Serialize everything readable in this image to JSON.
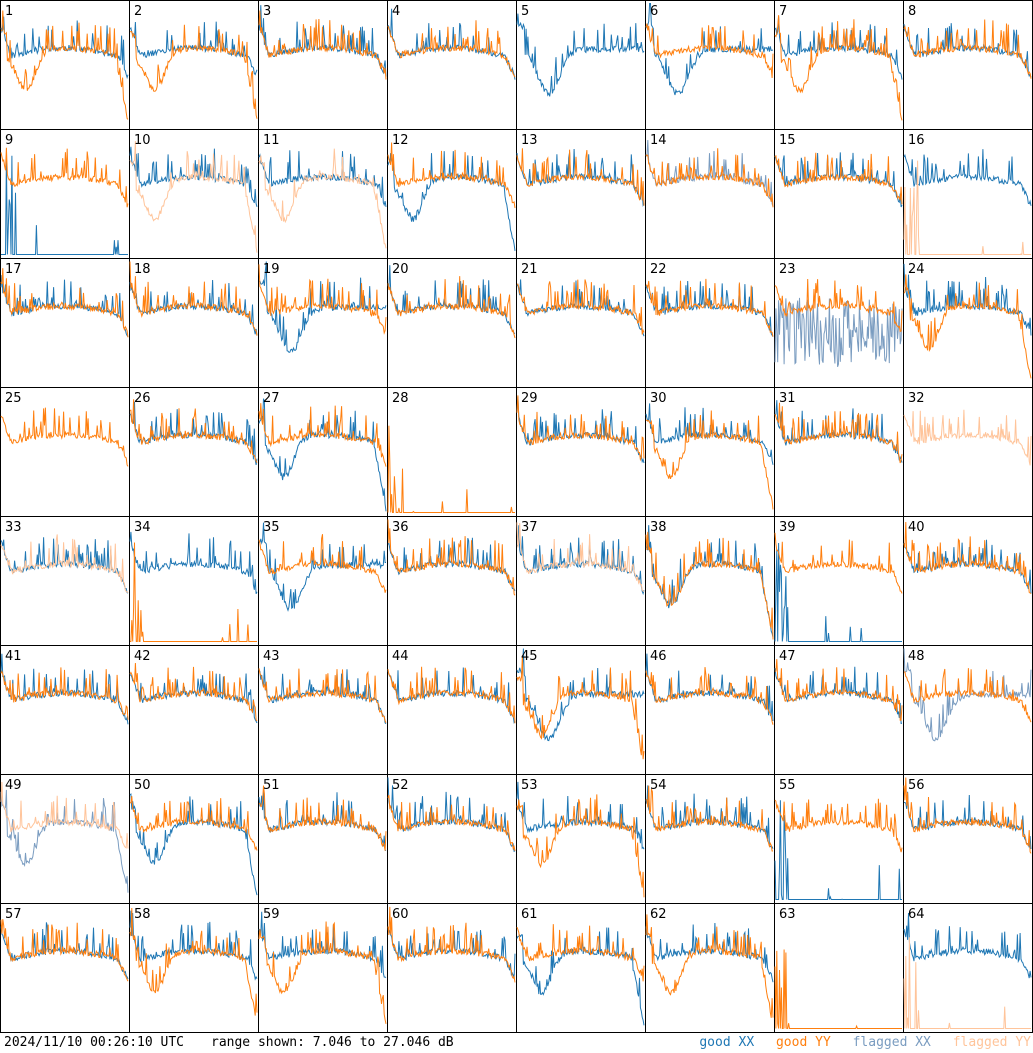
{
  "chart_data": {
    "type": "line",
    "layout": "8x8 small multiples (one panel per antenna)",
    "panel_labels": [
      "1",
      "2",
      "3",
      "4",
      "5",
      "6",
      "7",
      "8",
      "9",
      "10",
      "11",
      "12",
      "13",
      "14",
      "15",
      "16",
      "17",
      "18",
      "19",
      "20",
      "21",
      "22",
      "23",
      "24",
      "25",
      "26",
      "27",
      "28",
      "29",
      "30",
      "31",
      "32",
      "33",
      "34",
      "35",
      "36",
      "37",
      "38",
      "39",
      "40",
      "41",
      "42",
      "43",
      "44",
      "45",
      "46",
      "47",
      "48",
      "49",
      "50",
      "51",
      "52",
      "53",
      "54",
      "55",
      "56",
      "57",
      "58",
      "59",
      "60",
      "61",
      "62",
      "63",
      "64"
    ],
    "series": [
      {
        "name": "good XX",
        "color": "#1f77b4"
      },
      {
        "name": "good YY",
        "color": "#ff7f0e"
      },
      {
        "name": "flagged XX",
        "color": "#7a9cc0"
      },
      {
        "name": "flagged YY",
        "color": "#ffc49a"
      }
    ],
    "range_db": [
      7.046,
      27.046
    ],
    "panels": {
      "1": {
        "xx": "n",
        "yy": "b"
      },
      "2": {
        "xx": "n",
        "yy": "b"
      },
      "3": {
        "xx": "n",
        "yy": "n"
      },
      "4": {
        "xx": "n",
        "yy": "n"
      },
      "5": {
        "xx": "d",
        "yy": "none"
      },
      "6": {
        "xx": "d",
        "yy": "n"
      },
      "7": {
        "xx": "n",
        "yy": "b"
      },
      "8": {
        "xx": "n",
        "yy": "n"
      },
      "9": {
        "xx": "flat",
        "yy": "n"
      },
      "10": {
        "xx": "n",
        "yy": "fb"
      },
      "11": {
        "xx": "n",
        "yy": "fb"
      },
      "12": {
        "xx": "b",
        "yy": "n"
      },
      "13": {
        "xx": "n",
        "yy": "n"
      },
      "14": {
        "xx": "fn",
        "yy": "n"
      },
      "15": {
        "xx": "n",
        "yy": "n"
      },
      "16": {
        "xx": "n",
        "yy": "fflat"
      },
      "17": {
        "xx": "n",
        "yy": "n"
      },
      "18": {
        "xx": "n",
        "yy": "n"
      },
      "19": {
        "xx": "d",
        "yy": "n"
      },
      "20": {
        "xx": "n",
        "yy": "n"
      },
      "21": {
        "xx": "n",
        "yy": "n"
      },
      "22": {
        "xx": "n",
        "yy": "n"
      },
      "23": {
        "xx": "fnoise",
        "yy": "n"
      },
      "24": {
        "xx": "n",
        "yy": "b"
      },
      "25": {
        "xx": "none",
        "yy": "n"
      },
      "26": {
        "xx": "n",
        "yy": "n"
      },
      "27": {
        "xx": "b",
        "yy": "n"
      },
      "28": {
        "xx": "none",
        "yy": "flat"
      },
      "29": {
        "xx": "n",
        "yy": "n"
      },
      "30": {
        "xx": "n",
        "yy": "b"
      },
      "31": {
        "xx": "n",
        "yy": "n"
      },
      "32": {
        "xx": "none",
        "yy": "fn"
      },
      "33": {
        "xx": "n",
        "yy": "fn"
      },
      "34": {
        "xx": "n",
        "yy": "flat"
      },
      "35": {
        "xx": "d",
        "yy": "n"
      },
      "36": {
        "xx": "n",
        "yy": "n"
      },
      "37": {
        "xx": "n",
        "yy": "fn"
      },
      "38": {
        "xx": "b",
        "yy": "b"
      },
      "39": {
        "xx": "flat",
        "yy": "n"
      },
      "40": {
        "xx": "n",
        "yy": "n"
      },
      "41": {
        "xx": "n",
        "yy": "n"
      },
      "42": {
        "xx": "n",
        "yy": "n"
      },
      "43": {
        "xx": "n",
        "yy": "n"
      },
      "44": {
        "xx": "n",
        "yy": "n"
      },
      "45": {
        "xx": "d",
        "yy": "b"
      },
      "46": {
        "xx": "n",
        "yy": "n"
      },
      "47": {
        "xx": "n",
        "yy": "n"
      },
      "48": {
        "xx": "fd",
        "yy": "n"
      },
      "49": {
        "xx": "fb",
        "yy": "fn"
      },
      "50": {
        "xx": "b",
        "yy": "n"
      },
      "51": {
        "xx": "n",
        "yy": "n"
      },
      "52": {
        "xx": "n",
        "yy": "n"
      },
      "53": {
        "xx": "n",
        "yy": "b"
      },
      "54": {
        "xx": "n",
        "yy": "n"
      },
      "55": {
        "xx": "flat",
        "yy": "n"
      },
      "56": {
        "xx": "n",
        "yy": "n"
      },
      "57": {
        "xx": "n",
        "yy": "n"
      },
      "58": {
        "xx": "n",
        "yy": "b"
      },
      "59": {
        "xx": "n",
        "yy": "b"
      },
      "60": {
        "xx": "n",
        "yy": "n"
      },
      "61": {
        "xx": "b",
        "yy": "n"
      },
      "62": {
        "xx": "n",
        "yy": "b"
      },
      "63": {
        "xx": "none",
        "yy": "flat"
      },
      "64": {
        "xx": "n",
        "yy": "fflat"
      }
    }
  },
  "footer": {
    "timestamp": "2024/11/10 00:26:10 UTC",
    "range_text": "range shown: 7.046 to 27.046 dB",
    "legend": [
      {
        "label": "good XX",
        "color": "#1f77b4"
      },
      {
        "label": "good YY",
        "color": "#ff7f0e"
      },
      {
        "label": "flagged XX",
        "color": "#7a9cc0"
      },
      {
        "label": "flagged YY",
        "color": "#ffc49a"
      }
    ]
  }
}
